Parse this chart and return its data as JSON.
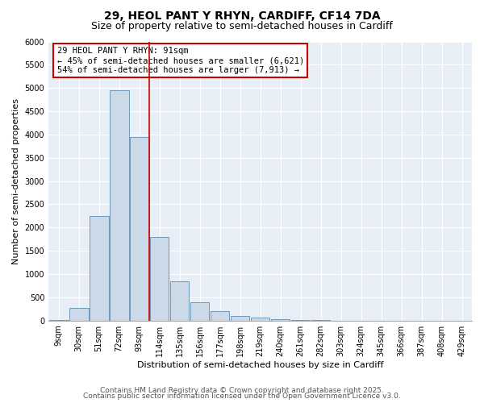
{
  "title_line1": "29, HEOL PANT Y RHYN, CARDIFF, CF14 7DA",
  "title_line2": "Size of property relative to semi-detached houses in Cardiff",
  "xlabel": "Distribution of semi-detached houses by size in Cardiff",
  "ylabel": "Number of semi-detached properties",
  "bar_labels": [
    "9sqm",
    "30sqm",
    "51sqm",
    "72sqm",
    "93sqm",
    "114sqm",
    "135sqm",
    "156sqm",
    "177sqm",
    "198sqm",
    "219sqm",
    "240sqm",
    "261sqm",
    "282sqm",
    "303sqm",
    "324sqm",
    "345sqm",
    "366sqm",
    "387sqm",
    "408sqm",
    "429sqm"
  ],
  "bar_values": [
    5,
    270,
    2250,
    4950,
    3950,
    1800,
    850,
    390,
    200,
    100,
    70,
    30,
    15,
    5,
    2,
    1,
    0,
    0,
    0,
    0,
    0
  ],
  "bar_color": "#ccd9e8",
  "bar_edge_color": "#7099b8",
  "vline_color": "#cc0000",
  "vline_x": 4.5,
  "ylim": [
    0,
    6000
  ],
  "yticks": [
    0,
    500,
    1000,
    1500,
    2000,
    2500,
    3000,
    3500,
    4000,
    4500,
    5000,
    5500,
    6000
  ],
  "annotation_title": "29 HEOL PANT Y RHYN: 91sqm",
  "annotation_line1": "← 45% of semi-detached houses are smaller (6,621)",
  "annotation_line2": "54% of semi-detached houses are larger (7,913) →",
  "annotation_box_facecolor": "#ffffff",
  "annotation_box_edgecolor": "#cc0000",
  "footer_line1": "Contains HM Land Registry data © Crown copyright and database right 2025.",
  "footer_line2": "Contains public sector information licensed under the Open Government Licence v3.0.",
  "bg_color": "#ffffff",
  "plot_bg_color": "#e8eef5",
  "grid_color": "#ffffff",
  "title_fontsize": 10,
  "subtitle_fontsize": 9,
  "axis_label_fontsize": 8,
  "tick_fontsize": 7,
  "annotation_fontsize": 7.5,
  "footer_fontsize": 6.5
}
